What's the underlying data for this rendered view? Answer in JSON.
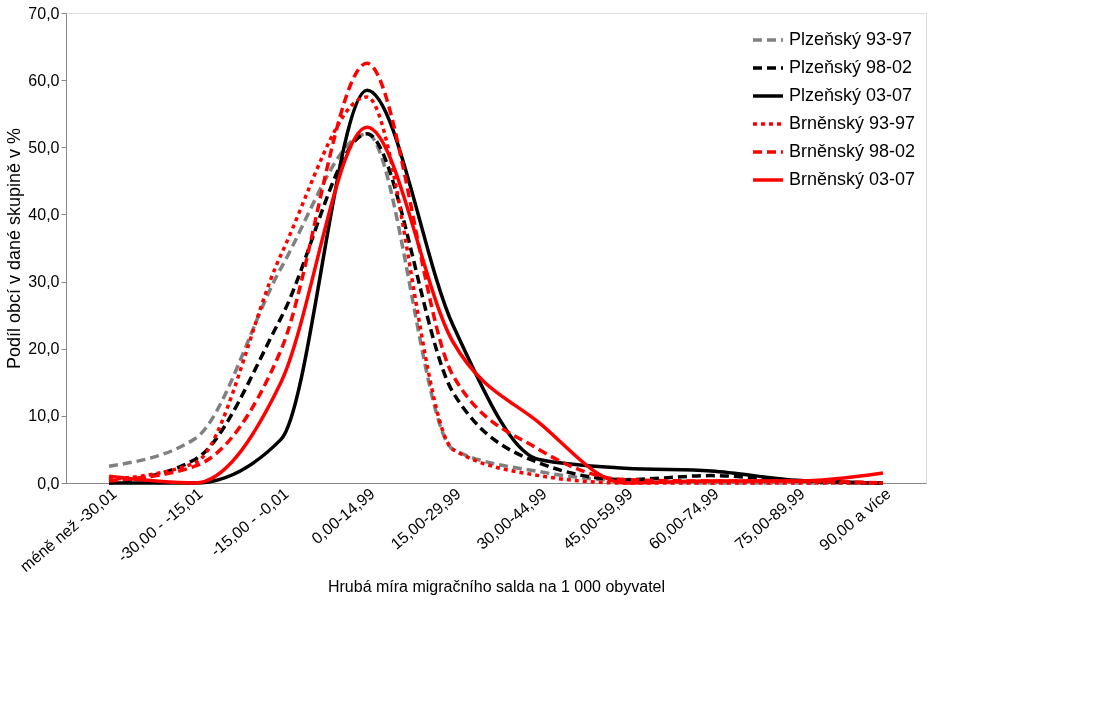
{
  "chart_data": {
    "type": "line",
    "xlabel": "Hrubá míra migračního salda na 1 000 obyvatel",
    "ylabel": "Podíl obcí v dané skupině v %",
    "categories": [
      "méně než -30,01",
      "-30,00 - -15,01",
      "-15,00 - -0,01",
      "0,00-14,99",
      "15,00-29,99",
      "30,00-44,99",
      "45,00-59,99",
      "60,00-74,99",
      "75,00-89,99",
      "90,00 a více"
    ],
    "series": [
      {
        "name": "Plzeňský 93-97",
        "color": "#808080",
        "line_style": "dashed",
        "values": [
          2.5,
          6.6,
          32,
          52,
          5,
          1.7,
          0.3,
          0,
          0,
          0
        ]
      },
      {
        "name": "Plzeňský 98-02",
        "color": "#000000",
        "line_style": "dashed",
        "values": [
          0,
          3.5,
          24.6,
          52,
          13.5,
          3,
          0.5,
          1.1,
          0.3,
          0
        ]
      },
      {
        "name": "Plzeňský 03-07",
        "color": "#000000",
        "line_style": "solid",
        "values": [
          0,
          0,
          6.5,
          58.5,
          23.5,
          3.5,
          2.2,
          1.8,
          0.4,
          0
        ]
      },
      {
        "name": "Brněnský 93-97",
        "color": "#ff0000",
        "line_style": "dotted",
        "values": [
          0.5,
          3,
          34,
          57.5,
          5,
          1.1,
          0,
          0,
          0,
          0
        ]
      },
      {
        "name": "Brněnský 98-02",
        "color": "#ff0000",
        "line_style": "dashed",
        "values": [
          0.3,
          2.5,
          19.8,
          62.5,
          16,
          5,
          0.5,
          0.3,
          0.3,
          0
        ]
      },
      {
        "name": "Brněnský 03-07",
        "color": "#ff0000",
        "line_style": "solid",
        "values": [
          1,
          0,
          15,
          53,
          21,
          9,
          0,
          0.3,
          0.3,
          1.5
        ]
      }
    ],
    "ylim": [
      0,
      70
    ],
    "yticks": [
      {
        "value": 0,
        "label": "0,0"
      },
      {
        "value": 10,
        "label": "10,0"
      },
      {
        "value": 20,
        "label": "20,0"
      },
      {
        "value": 30,
        "label": "30,0"
      },
      {
        "value": 40,
        "label": "40,0"
      },
      {
        "value": 50,
        "label": "50,0"
      },
      {
        "value": 60,
        "label": "60,0"
      },
      {
        "value": 70,
        "label": "70,0"
      }
    ],
    "grid": false,
    "legend": "top right",
    "marker": "none"
  }
}
